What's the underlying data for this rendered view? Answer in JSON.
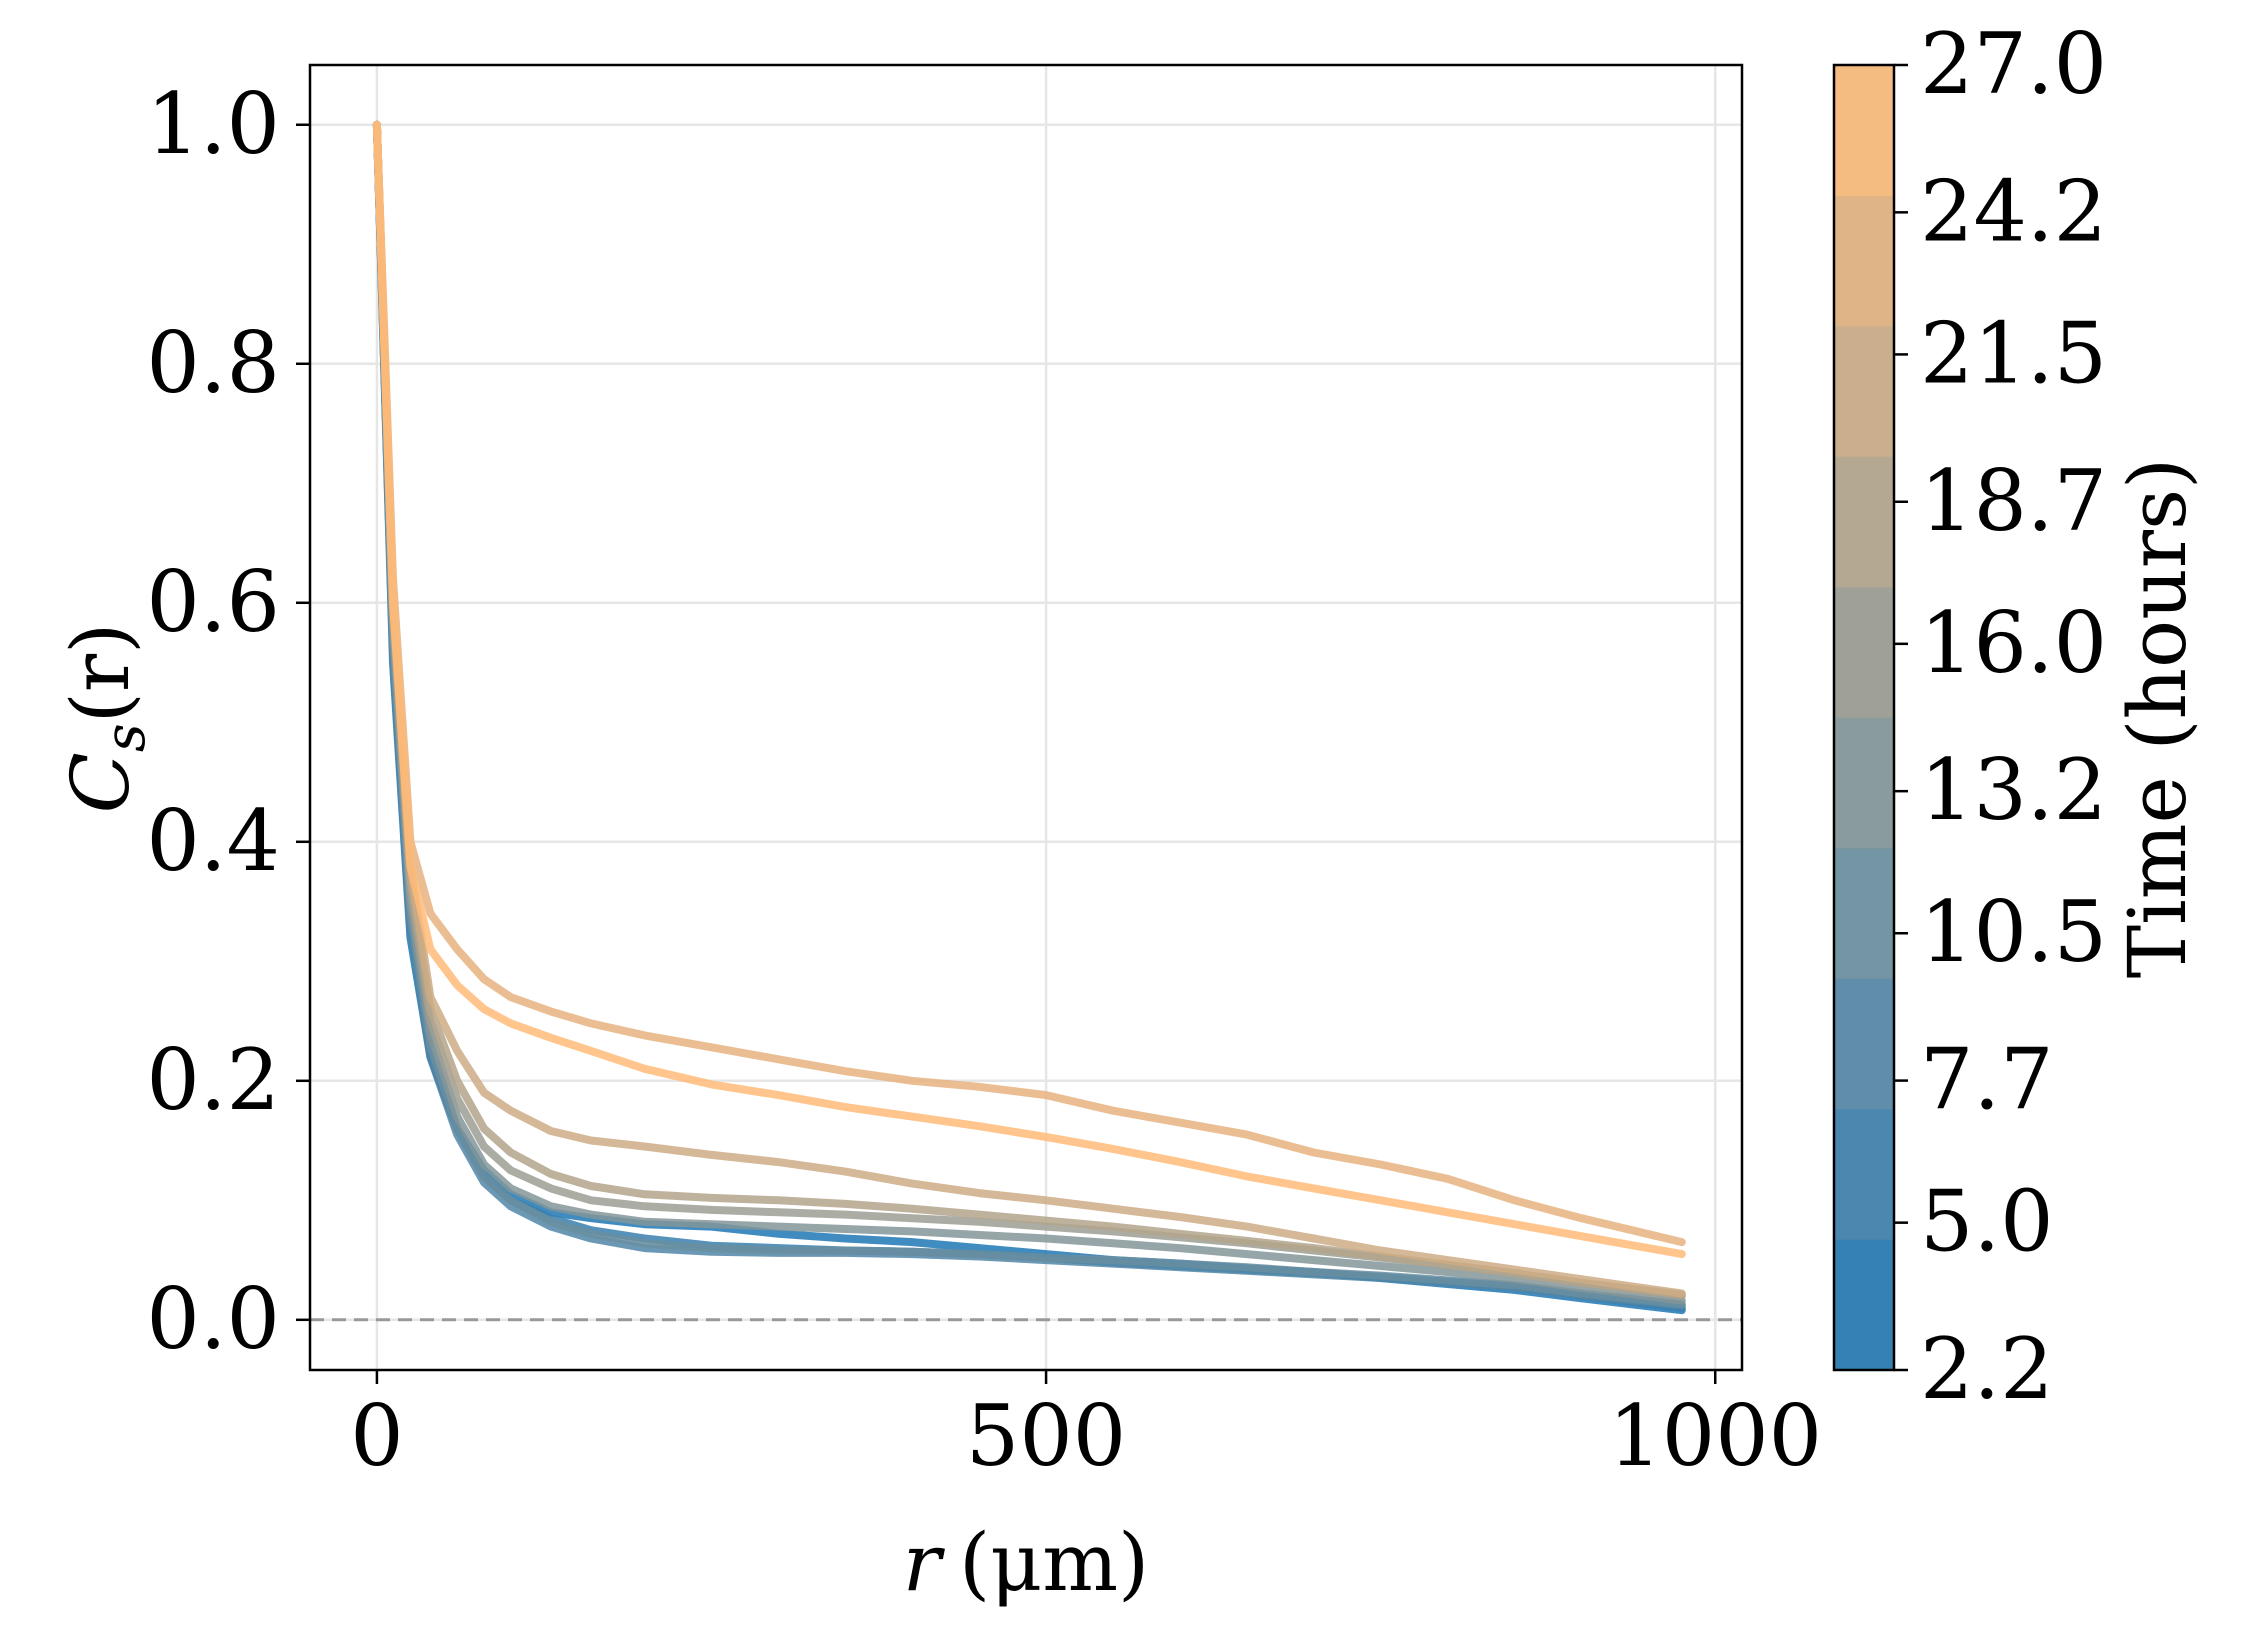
{
  "chart_data": {
    "type": "line",
    "title": "",
    "xlabel_var": "r",
    "xlabel_unit": "(μm)",
    "ylabel_main": "C",
    "ylabel_sub": "s",
    "ylabel_arg": "(r)",
    "xlim": [
      -50,
      1020
    ],
    "ylim": [
      -0.042,
      1.05
    ],
    "xticks": [
      0,
      500,
      1000
    ],
    "xtick_labels": [
      "0",
      "500",
      "1000"
    ],
    "yticks": [
      0.0,
      0.2,
      0.4,
      0.6,
      0.8,
      1.0
    ],
    "ytick_labels": [
      "0.0",
      "0.2",
      "0.4",
      "0.6",
      "0.8",
      "1.0"
    ],
    "grid": true,
    "reference_line": {
      "y": 0.0,
      "style": "dashed"
    },
    "colorbar": {
      "label": "Time (hours)",
      "range": [
        2.2,
        27.0
      ],
      "ticks": [
        2.2,
        5.0,
        7.7,
        10.5,
        13.2,
        16.0,
        18.7,
        21.5,
        24.2,
        27.0
      ],
      "tick_labels": [
        "2.2",
        "5.0",
        "7.7",
        "10.5",
        "13.2",
        "16.0",
        "18.7",
        "21.5",
        "24.2",
        "27.0"
      ],
      "color_low": "#1f77b4",
      "color_high": "#ffbb78"
    },
    "series": [
      {
        "name": "t=2.2h",
        "time": 2.2,
        "x": [
          0,
          12,
          25,
          40,
          60,
          80,
          100,
          130,
          160,
          200,
          250,
          300,
          350,
          400,
          450,
          500,
          550,
          600,
          650,
          700,
          750,
          800,
          850,
          900,
          975
        ],
        "y": [
          1.0,
          0.55,
          0.32,
          0.22,
          0.16,
          0.125,
          0.105,
          0.09,
          0.085,
          0.08,
          0.078,
          0.072,
          0.068,
          0.065,
          0.06,
          0.055,
          0.05,
          0.047,
          0.043,
          0.04,
          0.035,
          0.03,
          0.025,
          0.018,
          0.008
        ]
      },
      {
        "name": "t=5.0h",
        "time": 5.0,
        "x": [
          0,
          12,
          25,
          40,
          60,
          80,
          100,
          130,
          160,
          200,
          250,
          300,
          350,
          400,
          450,
          500,
          550,
          600,
          650,
          700,
          750,
          800,
          850,
          900,
          975
        ],
        "y": [
          1.0,
          0.56,
          0.33,
          0.22,
          0.16,
          0.12,
          0.1,
          0.085,
          0.075,
          0.068,
          0.062,
          0.06,
          0.058,
          0.057,
          0.055,
          0.052,
          0.048,
          0.045,
          0.042,
          0.039,
          0.036,
          0.032,
          0.028,
          0.02,
          0.01
        ]
      },
      {
        "name": "t=7.7h",
        "time": 7.7,
        "x": [
          0,
          12,
          25,
          40,
          60,
          80,
          100,
          130,
          160,
          200,
          250,
          300,
          350,
          400,
          450,
          500,
          550,
          600,
          650,
          700,
          750,
          800,
          850,
          900,
          975
        ],
        "y": [
          1.0,
          0.56,
          0.33,
          0.22,
          0.155,
          0.115,
          0.095,
          0.078,
          0.068,
          0.06,
          0.057,
          0.056,
          0.056,
          0.055,
          0.053,
          0.05,
          0.047,
          0.044,
          0.041,
          0.038,
          0.035,
          0.031,
          0.027,
          0.02,
          0.012
        ]
      },
      {
        "name": "t=10.5h",
        "time": 10.5,
        "x": [
          0,
          12,
          25,
          40,
          60,
          80,
          100,
          130,
          160,
          200,
          250,
          300,
          350,
          400,
          450,
          500,
          550,
          600,
          650,
          700,
          750,
          800,
          850,
          900,
          975
        ],
        "y": [
          1.0,
          0.57,
          0.34,
          0.23,
          0.16,
          0.12,
          0.1,
          0.082,
          0.072,
          0.064,
          0.06,
          0.058,
          0.058,
          0.057,
          0.055,
          0.052,
          0.05,
          0.047,
          0.044,
          0.04,
          0.037,
          0.033,
          0.029,
          0.022,
          0.013
        ]
      },
      {
        "name": "t=13.2h",
        "time": 13.2,
        "x": [
          0,
          12,
          25,
          40,
          60,
          80,
          100,
          130,
          160,
          200,
          250,
          300,
          350,
          400,
          450,
          500,
          550,
          600,
          650,
          700,
          750,
          800,
          850,
          900,
          975
        ],
        "y": [
          1.0,
          0.58,
          0.35,
          0.24,
          0.17,
          0.13,
          0.11,
          0.095,
          0.088,
          0.082,
          0.08,
          0.078,
          0.076,
          0.074,
          0.071,
          0.068,
          0.064,
          0.06,
          0.055,
          0.05,
          0.045,
          0.04,
          0.034,
          0.027,
          0.016
        ]
      },
      {
        "name": "t=16.0h",
        "time": 16.0,
        "x": [
          0,
          12,
          25,
          40,
          60,
          80,
          100,
          130,
          160,
          200,
          250,
          300,
          350,
          400,
          450,
          500,
          550,
          600,
          650,
          700,
          750,
          800,
          850,
          900,
          975
        ],
        "y": [
          1.0,
          0.59,
          0.36,
          0.25,
          0.185,
          0.145,
          0.125,
          0.11,
          0.1,
          0.095,
          0.092,
          0.09,
          0.088,
          0.085,
          0.082,
          0.078,
          0.074,
          0.069,
          0.064,
          0.058,
          0.052,
          0.046,
          0.039,
          0.031,
          0.02
        ]
      },
      {
        "name": "t=18.7h",
        "time": 18.7,
        "x": [
          0,
          12,
          25,
          40,
          60,
          80,
          100,
          130,
          160,
          200,
          250,
          300,
          350,
          400,
          450,
          500,
          550,
          600,
          650,
          700,
          750,
          800,
          850,
          900,
          975
        ],
        "y": [
          1.0,
          0.6,
          0.37,
          0.26,
          0.2,
          0.16,
          0.14,
          0.122,
          0.112,
          0.105,
          0.102,
          0.1,
          0.097,
          0.093,
          0.088,
          0.083,
          0.078,
          0.072,
          0.066,
          0.06,
          0.053,
          0.046,
          0.039,
          0.031,
          0.021
        ]
      },
      {
        "name": "t=21.5h",
        "time": 21.5,
        "x": [
          0,
          12,
          25,
          40,
          60,
          80,
          100,
          130,
          160,
          200,
          250,
          300,
          350,
          400,
          450,
          500,
          550,
          600,
          650,
          700,
          750,
          800,
          850,
          900,
          975
        ],
        "y": [
          1.0,
          0.6,
          0.38,
          0.27,
          0.225,
          0.19,
          0.175,
          0.158,
          0.15,
          0.145,
          0.138,
          0.132,
          0.124,
          0.114,
          0.106,
          0.1,
          0.093,
          0.086,
          0.078,
          0.068,
          0.058,
          0.05,
          0.042,
          0.034,
          0.022
        ]
      },
      {
        "name": "t=24.2h",
        "time": 24.2,
        "x": [
          0,
          12,
          25,
          40,
          60,
          80,
          100,
          130,
          160,
          200,
          250,
          300,
          350,
          400,
          450,
          500,
          550,
          600,
          650,
          700,
          750,
          800,
          850,
          900,
          975
        ],
        "y": [
          1.0,
          0.62,
          0.4,
          0.34,
          0.31,
          0.285,
          0.27,
          0.258,
          0.248,
          0.238,
          0.228,
          0.218,
          0.208,
          0.2,
          0.195,
          0.188,
          0.175,
          0.165,
          0.155,
          0.14,
          0.13,
          0.118,
          0.1,
          0.085,
          0.065
        ]
      },
      {
        "name": "t=27.0h",
        "time": 27.0,
        "x": [
          0,
          12,
          25,
          40,
          60,
          80,
          100,
          130,
          160,
          200,
          250,
          300,
          350,
          400,
          450,
          500,
          550,
          600,
          650,
          700,
          750,
          800,
          850,
          900,
          975
        ],
        "y": [
          1.0,
          0.6,
          0.38,
          0.31,
          0.28,
          0.26,
          0.248,
          0.236,
          0.225,
          0.21,
          0.197,
          0.188,
          0.178,
          0.17,
          0.162,
          0.153,
          0.143,
          0.132,
          0.12,
          0.11,
          0.1,
          0.09,
          0.08,
          0.07,
          0.055
        ]
      }
    ]
  }
}
